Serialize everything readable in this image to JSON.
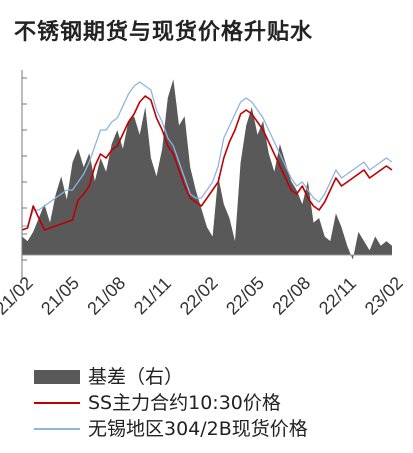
{
  "chart_data": {
    "type": "line",
    "title": "不锈钢期货与现货价格升贴水",
    "x_tick_labels": [
      "21/02",
      "21/05",
      "21/08",
      "21/11",
      "22/02",
      "22/05",
      "22/08",
      "22/11",
      "23/02"
    ],
    "legend_position": "bottom",
    "grid": false,
    "series": [
      {
        "name": "基差（右）",
        "kind": "area",
        "axis": "right",
        "color": "#595959",
        "values": [
          0.8,
          0.6,
          1.0,
          1.6,
          2.2,
          1.4,
          2.6,
          3.4,
          2.4,
          4.0,
          4.6,
          3.8,
          4.4,
          3.2,
          4.2,
          3.6,
          4.8,
          5.4,
          4.6,
          5.8,
          6.0,
          5.2,
          6.4,
          4.2,
          3.4,
          4.6,
          6.8,
          7.6,
          5.6,
          6.0,
          3.8,
          2.8,
          2.0,
          1.2,
          0.8,
          3.4,
          2.2,
          1.6,
          0.6,
          4.0,
          5.6,
          6.4,
          5.2,
          5.8,
          4.4,
          3.6,
          4.8,
          4.0,
          3.2,
          2.8,
          2.2,
          3.2,
          1.4,
          1.6,
          0.8,
          0.6,
          1.8,
          1.2,
          0.4,
          -0.2,
          1.0,
          0.6,
          0.2,
          0.8,
          0.4,
          0.6,
          0.4
        ]
      },
      {
        "name": "SS主力合约10:30价格",
        "kind": "line",
        "axis": "left",
        "color": "#c00000",
        "values": [
          0.4,
          0.41,
          0.52,
          0.46,
          0.4,
          0.41,
          0.42,
          0.43,
          0.44,
          0.45,
          0.55,
          0.58,
          0.62,
          0.72,
          0.78,
          0.76,
          0.8,
          0.82,
          0.88,
          0.94,
          0.98,
          1.04,
          1.07,
          1.05,
          0.96,
          0.9,
          0.82,
          0.78,
          0.7,
          0.62,
          0.56,
          0.54,
          0.52,
          0.56,
          0.6,
          0.64,
          0.76,
          0.84,
          0.9,
          0.98,
          1.0,
          0.98,
          0.94,
          0.9,
          0.84,
          0.78,
          0.72,
          0.66,
          0.6,
          0.58,
          0.62,
          0.56,
          0.52,
          0.5,
          0.54,
          0.6,
          0.66,
          0.62,
          0.64,
          0.66,
          0.68,
          0.7,
          0.66,
          0.68,
          0.7,
          0.72,
          0.7
        ]
      },
      {
        "name": "无锡地区304/2B现货价格",
        "kind": "line",
        "axis": "left",
        "color": "#8eb4e3",
        "values": [
          0.42,
          0.42,
          0.5,
          0.5,
          0.52,
          0.54,
          0.56,
          0.58,
          0.6,
          0.6,
          0.64,
          0.68,
          0.74,
          0.82,
          0.9,
          0.9,
          0.94,
          0.96,
          1.02,
          1.08,
          1.12,
          1.14,
          1.12,
          1.1,
          1.0,
          0.94,
          0.86,
          0.82,
          0.74,
          0.66,
          0.58,
          0.56,
          0.56,
          0.6,
          0.64,
          0.72,
          0.86,
          0.92,
          0.98,
          1.04,
          1.06,
          1.04,
          1.0,
          0.96,
          0.9,
          0.84,
          0.78,
          0.72,
          0.66,
          0.62,
          0.64,
          0.6,
          0.56,
          0.54,
          0.58,
          0.64,
          0.7,
          0.66,
          0.68,
          0.7,
          0.72,
          0.74,
          0.7,
          0.72,
          0.74,
          0.76,
          0.74
        ]
      }
    ]
  }
}
